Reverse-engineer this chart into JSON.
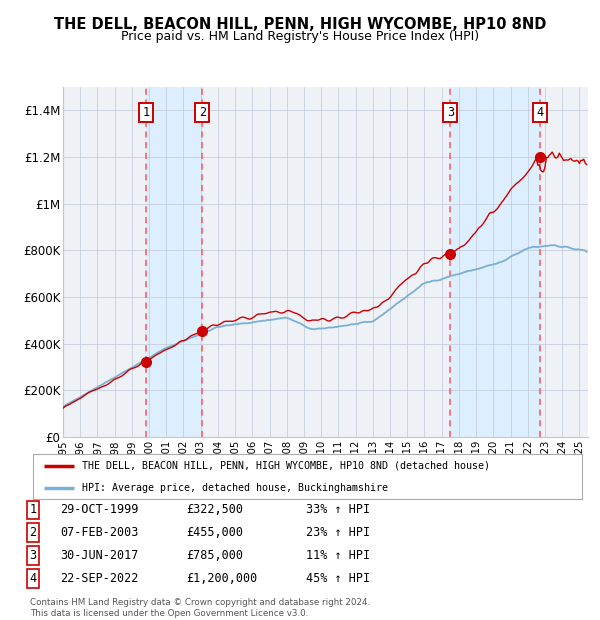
{
  "title": "THE DELL, BEACON HILL, PENN, HIGH WYCOMBE, HP10 8ND",
  "subtitle": "Price paid vs. HM Land Registry's House Price Index (HPI)",
  "background_color": "#ffffff",
  "chart_bg_color": "#eef2f7",
  "grid_color": "#c0c8d8",
  "hpi_line_color": "#7bafd4",
  "price_line_color": "#cc0000",
  "sale_marker_color": "#cc0000",
  "dashed_line_color": "#ff5555",
  "highlight_band_color": "#ddeeff",
  "sales": [
    {
      "date_t": 1999.83,
      "price": 322500,
      "label": "1"
    },
    {
      "date_t": 2003.09,
      "price": 455000,
      "label": "2"
    },
    {
      "date_t": 2017.5,
      "price": 785000,
      "label": "3"
    },
    {
      "date_t": 2022.72,
      "price": 1200000,
      "label": "4"
    }
  ],
  "sale_table": [
    {
      "num": "1",
      "date": "29-OCT-1999",
      "price": "£322,500",
      "pct": "33% ↑ HPI"
    },
    {
      "num": "2",
      "date": "07-FEB-2003",
      "price": "£455,000",
      "pct": "23% ↑ HPI"
    },
    {
      "num": "3",
      "date": "30-JUN-2017",
      "price": "£785,000",
      "pct": "11% ↑ HPI"
    },
    {
      "num": "4",
      "date": "22-SEP-2022",
      "price": "£1,200,000",
      "pct": "45% ↑ HPI"
    }
  ],
  "legend_entries": [
    {
      "label": "THE DELL, BEACON HILL, PENN, HIGH WYCOMBE, HP10 8ND (detached house)",
      "color": "#cc0000"
    },
    {
      "label": "HPI: Average price, detached house, Buckinghamshire",
      "color": "#7bafd4"
    }
  ],
  "footnote": "Contains HM Land Registry data © Crown copyright and database right 2024.\nThis data is licensed under the Open Government Licence v3.0.",
  "ylim": [
    0,
    1500000
  ],
  "yticks": [
    0,
    200000,
    400000,
    600000,
    800000,
    1000000,
    1200000,
    1400000
  ],
  "ytick_labels": [
    "£0",
    "£200K",
    "£400K",
    "£600K",
    "£800K",
    "£1M",
    "£1.2M",
    "£1.4M"
  ]
}
